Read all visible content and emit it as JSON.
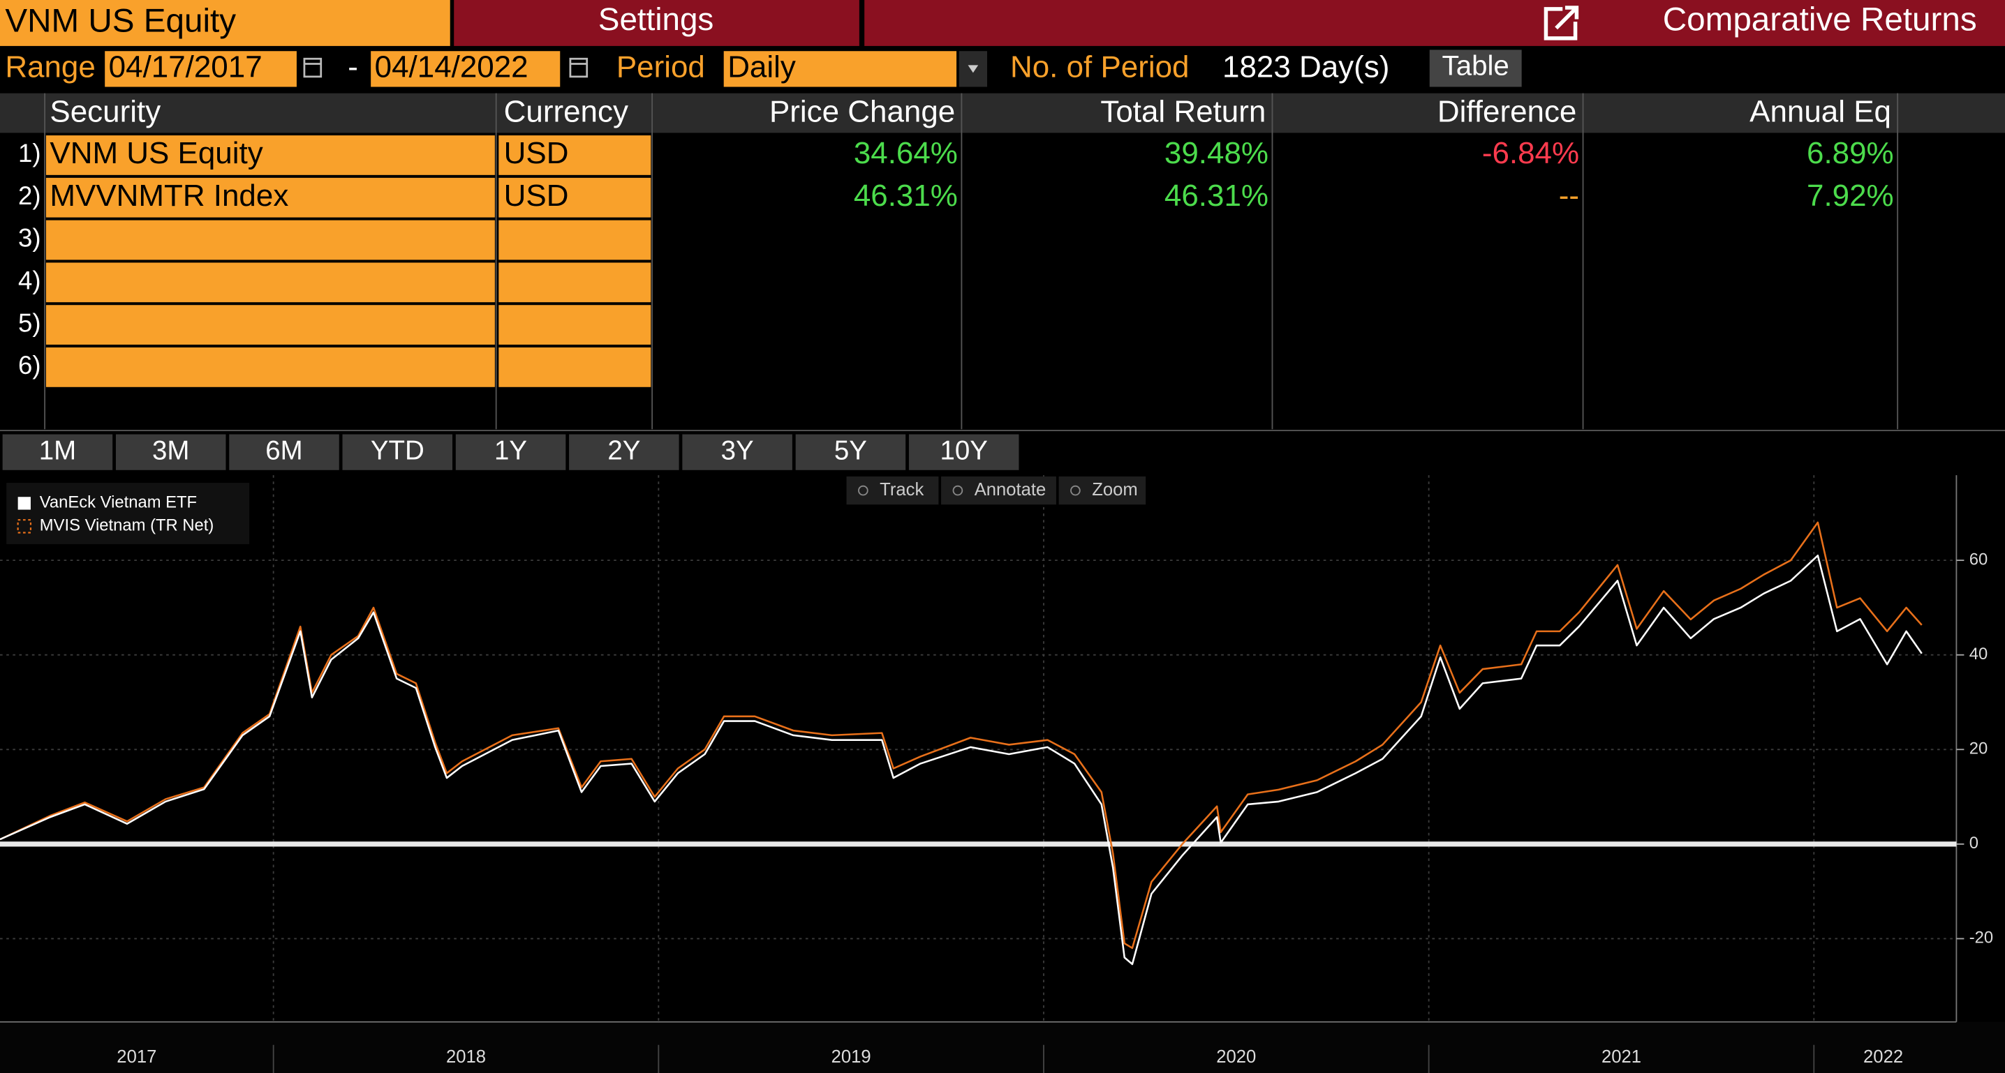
{
  "header": {
    "security": "VNM US Equity",
    "settings": "Settings",
    "title": "Comparative Returns"
  },
  "controls": {
    "range_label": "Range",
    "start_date": "04/17/2017",
    "dash": "-",
    "end_date": "04/14/2022",
    "period_label": "Period",
    "period": "Daily",
    "periods_label": "No. of Period",
    "periods": "1823 Day(s)",
    "table_button": "Table"
  },
  "table": {
    "columns": [
      "Security",
      "Currency",
      "Price Change",
      "Total Return",
      "Difference",
      "Annual Eq"
    ],
    "rows": [
      {
        "number": "1)",
        "security": "VNM US Equity",
        "currency": "USD",
        "price_change": "34.64%",
        "total_return": "39.48%",
        "difference": "-6.84%",
        "annual_eq": "6.89%"
      },
      {
        "number": "2)",
        "security": "MVVNMTR Index",
        "currency": "USD",
        "price_change": "46.31%",
        "total_return": "46.31%",
        "difference": "--",
        "annual_eq": "7.92%"
      },
      {
        "number": "3)"
      },
      {
        "number": "4)"
      },
      {
        "number": "5)"
      },
      {
        "number": "6)"
      }
    ]
  },
  "range_buttons": [
    "1M",
    "3M",
    "6M",
    "YTD",
    "1Y",
    "2Y",
    "3Y",
    "5Y",
    "10Y"
  ],
  "chart_toolbar": [
    "Track",
    "Annotate",
    "Zoom"
  ],
  "chart_data": {
    "type": "line",
    "x": [
      2017.29,
      2017.42,
      2017.51,
      2017.62,
      2017.72,
      2017.82,
      2017.92,
      2017.99,
      2018.07,
      2018.1,
      2018.15,
      2018.22,
      2018.26,
      2018.32,
      2018.37,
      2018.42,
      2018.45,
      2018.49,
      2018.62,
      2018.74,
      2018.8,
      2018.85,
      2018.93,
      2018.99,
      2019.05,
      2019.12,
      2019.17,
      2019.25,
      2019.35,
      2019.45,
      2019.58,
      2019.61,
      2019.68,
      2019.81,
      2019.91,
      2020.01,
      2020.08,
      2020.15,
      2020.18,
      2020.21,
      2020.23,
      2020.28,
      2020.36,
      2020.45,
      2020.46,
      2020.53,
      2020.61,
      2020.71,
      2020.81,
      2020.88,
      2020.98,
      2021.03,
      2021.08,
      2021.14,
      2021.24,
      2021.28,
      2021.34,
      2021.39,
      2021.49,
      2021.54,
      2021.61,
      2021.68,
      2021.74,
      2021.81,
      2021.87,
      2021.94,
      2022.01,
      2022.06,
      2022.12,
      2022.19,
      2022.24,
      2022.28
    ],
    "series": [
      {
        "name": "VanEck Vietnam ETF",
        "color": "#ffffff",
        "values": [
          1,
          5.7,
          8.4,
          4.3,
          9,
          11.6,
          23,
          27,
          45,
          31,
          39,
          43.5,
          49,
          35,
          33,
          20.5,
          14,
          16.5,
          22,
          24,
          11,
          16.5,
          17,
          9,
          15,
          19,
          26,
          26,
          23,
          22,
          22,
          14,
          17,
          20.5,
          19,
          20.5,
          17,
          8.4,
          -5,
          -24,
          -25.4,
          -10.5,
          -2.4,
          5.7,
          0.3,
          8.4,
          9,
          11,
          15,
          18,
          27,
          39.5,
          28.6,
          34,
          35,
          42,
          42,
          46,
          55.7,
          42,
          50,
          43.5,
          47.6,
          50,
          53,
          55.7,
          61,
          45,
          47.6,
          38,
          45,
          40.3
        ]
      },
      {
        "name": "MVIS Vietnam (TR Net)",
        "color": "#e8701a",
        "dashed": true,
        "values": [
          1,
          6,
          8.8,
          4.8,
          9.5,
          12,
          23.5,
          27.5,
          46,
          32,
          40,
          44,
          50,
          36,
          34,
          21.5,
          15,
          17.5,
          23,
          24.5,
          12,
          17.5,
          18,
          10,
          16,
          20,
          27,
          27,
          24,
          23,
          23.5,
          16,
          18.5,
          22.5,
          21,
          22,
          19,
          11,
          -2,
          -21,
          -22,
          -8,
          0,
          8,
          2.5,
          10.5,
          11.5,
          13.5,
          17.5,
          21,
          30,
          42,
          32,
          37,
          38,
          45,
          45,
          49,
          59,
          45.5,
          53.5,
          47.5,
          51.5,
          54,
          57,
          60,
          68,
          50,
          52,
          45,
          50,
          46.31
        ]
      }
    ],
    "xlim": [
      2017.29,
      2022.37
    ],
    "xticks": [
      2018,
      2019,
      2020,
      2021,
      2022
    ],
    "xtick_labels": [
      {
        "value": 2017.645,
        "label": "2017"
      },
      {
        "value": 2018.5,
        "label": "2018"
      },
      {
        "value": 2019.5,
        "label": "2019"
      },
      {
        "value": 2020.5,
        "label": "2020"
      },
      {
        "value": 2021.5,
        "label": "2021"
      },
      {
        "value": 2022.18,
        "label": "2022"
      }
    ],
    "ylim": [
      -37.6,
      78
    ],
    "yticks": [
      -20,
      0,
      20,
      40,
      60
    ],
    "grid": true,
    "legend": "upper-left"
  }
}
